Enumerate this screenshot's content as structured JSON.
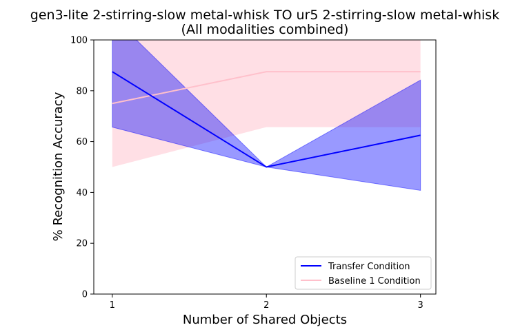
{
  "chart_data": {
    "type": "line",
    "title": "gen3-lite 2-stirring-slow metal-whisk TO ur5 2-stirring-slow metal-whisk",
    "subtitle": "(All modalities combined)",
    "xlabel": "Number of Shared Objects",
    "ylabel": "% Recognition Accuracy",
    "x": [
      1,
      2,
      3
    ],
    "xticks": [
      "1",
      "2",
      "3"
    ],
    "yticks": [
      "0",
      "20",
      "40",
      "60",
      "80",
      "100"
    ],
    "xlim": [
      0.88,
      3.1
    ],
    "ylim": [
      0,
      100
    ],
    "grid": false,
    "legend_position": "lower-right",
    "series": [
      {
        "name": "Transfer Condition",
        "color": "#0000ff",
        "values": [
          87.5,
          50,
          62.5
        ],
        "band_upper": [
          109.3,
          50,
          84.2
        ],
        "band_lower": [
          65.7,
          50,
          40.8
        ]
      },
      {
        "name": "Baseline 1 Condition",
        "color": "#ffc0cb",
        "values": [
          75,
          87.5,
          87.5
        ],
        "band_upper": [
          100,
          109.3,
          109.3
        ],
        "band_lower": [
          50,
          65.7,
          65.7
        ]
      }
    ]
  }
}
